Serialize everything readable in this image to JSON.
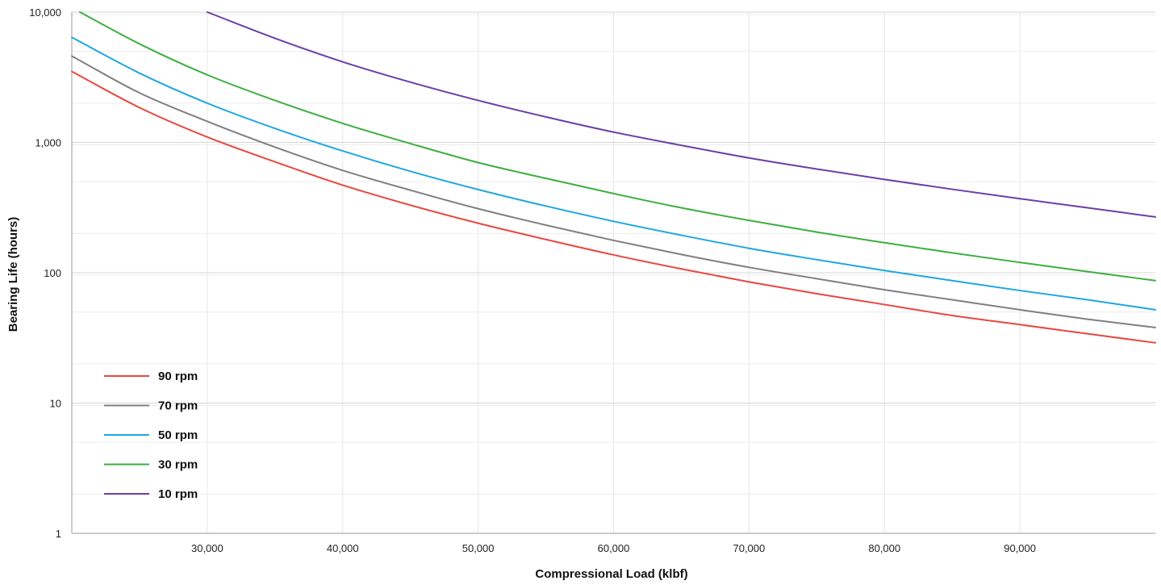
{
  "chart_data": {
    "type": "line",
    "xlabel": "Compressional Load (klbf)",
    "ylabel": "Bearing Life (hours)",
    "x_scale": "linear",
    "y_scale": "log",
    "xlim": [
      20000,
      100000
    ],
    "ylim": [
      1,
      10000
    ],
    "x_ticks": [
      30000,
      40000,
      50000,
      60000,
      70000,
      80000,
      90000
    ],
    "x_tick_labels": [
      "30,000",
      "40,000",
      "50,000",
      "60,000",
      "70,000",
      "80,000",
      "90,000"
    ],
    "y_ticks": [
      1,
      10,
      100,
      1000,
      10000
    ],
    "y_tick_labels": [
      "1",
      "10",
      "100",
      "1,000",
      "10,000"
    ],
    "grid": true,
    "legend_position": "bottom-left",
    "series": [
      {
        "name": "90 rpm",
        "color": "#e8473f",
        "x": [
          20000,
          25000,
          30000,
          35000,
          40000,
          45000,
          50000,
          55000,
          60000,
          65000,
          70000,
          75000,
          80000,
          85000,
          90000,
          95000,
          100000
        ],
        "y": [
          3500,
          1850,
          1100,
          710,
          470,
          330,
          240,
          180,
          137,
          107,
          85,
          69,
          57,
          47,
          40,
          34,
          29
        ]
      },
      {
        "name": "70 rpm",
        "color": "#7f7f7f",
        "x": [
          20000,
          25000,
          30000,
          35000,
          40000,
          45000,
          50000,
          55000,
          60000,
          65000,
          70000,
          75000,
          80000,
          85000,
          90000,
          95000,
          100000
        ],
        "y": [
          4600,
          2400,
          1450,
          920,
          610,
          430,
          310,
          232,
          177,
          138,
          110,
          90,
          74,
          62,
          52,
          44,
          38
        ]
      },
      {
        "name": "50 rpm",
        "color": "#1ea7e1",
        "x": [
          20000,
          25000,
          30000,
          35000,
          40000,
          45000,
          50000,
          55000,
          60000,
          65000,
          70000,
          75000,
          80000,
          85000,
          90000,
          95000,
          100000
        ],
        "y": [
          6400,
          3400,
          2000,
          1280,
          860,
          600,
          435,
          325,
          248,
          194,
          154,
          126,
          104,
          87,
          73,
          62,
          52
        ]
      },
      {
        "name": "30 rpm",
        "color": "#3dae3f",
        "x": [
          20600,
          25000,
          30000,
          35000,
          40000,
          45000,
          50000,
          55000,
          60000,
          65000,
          70000,
          75000,
          80000,
          85000,
          90000,
          95000,
          100000
        ],
        "y": [
          10000,
          5700,
          3300,
          2100,
          1400,
          980,
          700,
          530,
          405,
          315,
          252,
          205,
          170,
          142,
          120,
          102,
          87
        ]
      },
      {
        "name": "10 rpm",
        "color": "#6a3fa8",
        "x": [
          30000,
          35000,
          40000,
          45000,
          50000,
          55000,
          60000,
          65000,
          70000,
          75000,
          80000,
          85000,
          90000,
          95000,
          100000
        ],
        "y": [
          10000,
          6300,
          4150,
          2900,
          2100,
          1570,
          1200,
          950,
          760,
          625,
          520,
          437,
          370,
          315,
          268
        ]
      }
    ]
  }
}
